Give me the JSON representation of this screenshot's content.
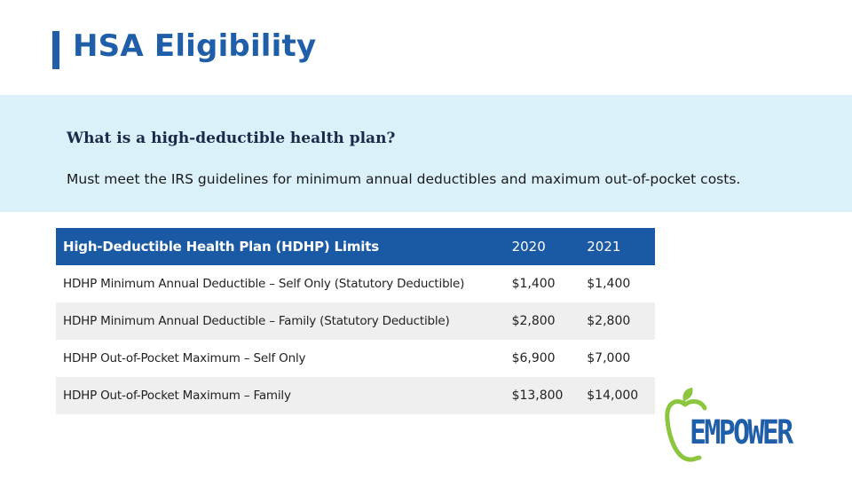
{
  "header": {
    "title": "HSA Eligibility"
  },
  "intro": {
    "question": "What is a high-deductible health plan?",
    "text": "Must meet the IRS guidelines for minimum annual deductibles and maximum out-of-pocket costs."
  },
  "table": {
    "headers": [
      "High-Deductible Health Plan (HDHP) Limits",
      "2020",
      "2021"
    ],
    "rows": [
      [
        "HDHP Minimum Annual Deductible – Self Only (Statutory Deductible)",
        "$1,400",
        "$1,400"
      ],
      [
        "HDHP Minimum Annual Deductible – Family (Statutory Deductible)",
        "$2,800",
        "$2,800"
      ],
      [
        "HDHP Out-of-Pocket Maximum – Self Only",
        "$6,900",
        "$7,000"
      ],
      [
        "HDHP Out-of-Pocket Maximum – Family",
        "$13,800",
        "$14,000"
      ]
    ]
  },
  "logo": {
    "text": "EMPOWER",
    "icon": "apple-logo-icon",
    "colors": {
      "brand_blue": "#1f5ea8",
      "brand_green": "#8cc63f"
    }
  },
  "colors": {
    "accent": "#1f5ea8",
    "header_row": "#1a5aa5",
    "band": "#dbf1fa",
    "stripe": "#efefef"
  }
}
